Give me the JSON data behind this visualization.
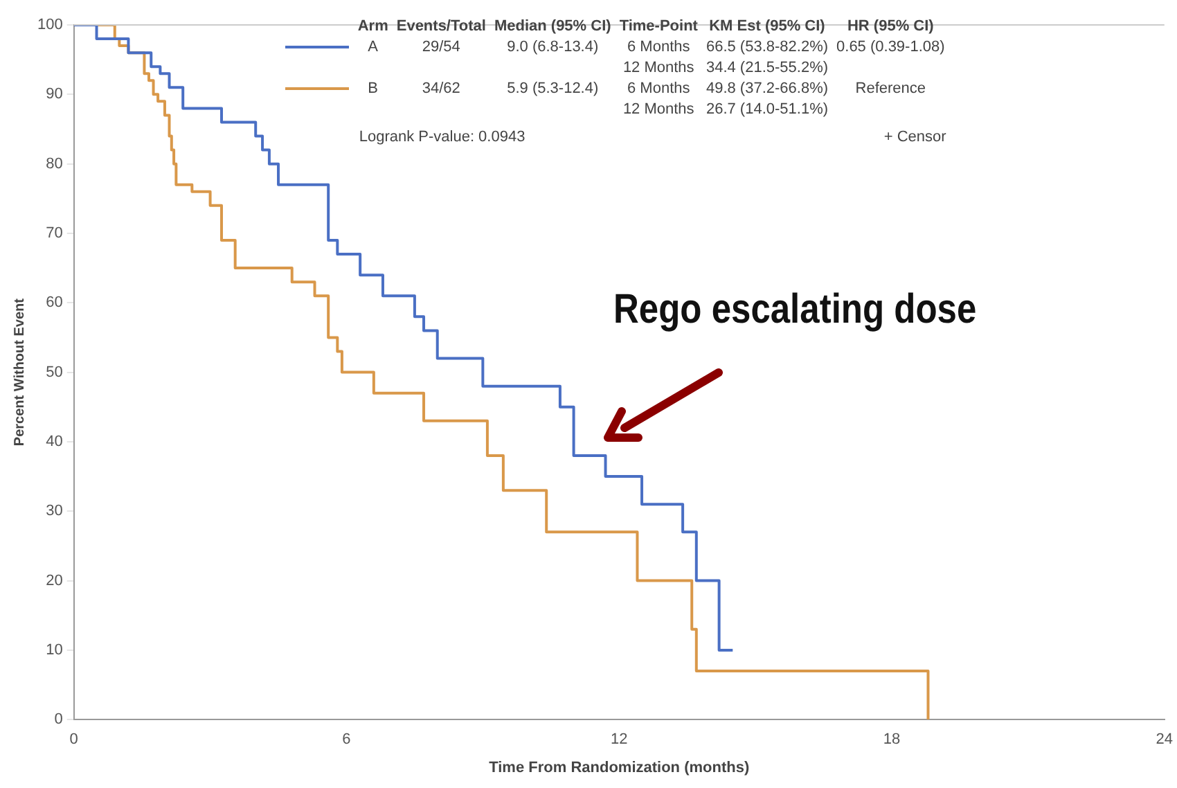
{
  "chart_data": {
    "type": "step",
    "xlabel": "Time From Randomization (months)",
    "ylabel": "Percent Without Event",
    "xlim": [
      0,
      24
    ],
    "xticks": [
      0,
      6,
      12,
      18,
      24
    ],
    "ylim": [
      0,
      100
    ],
    "yticks": [
      0,
      10,
      20,
      30,
      40,
      50,
      60,
      70,
      80,
      90,
      100
    ],
    "grid": false,
    "marker": "none",
    "legend": "top left",
    "series": [
      {
        "name": "A",
        "color": "#4a6fc4",
        "x": [
          0,
          0.5,
          1.2,
          1.7,
          1.9,
          2.1,
          2.4,
          3.25,
          4.0,
          4.15,
          4.3,
          4.5,
          5.6,
          5.8,
          6.3,
          6.8,
          7.5,
          7.7,
          8.0,
          9.0,
          10.7,
          11.0,
          11.7,
          12.5,
          13.4,
          13.7,
          14.2,
          14.5
        ],
        "values": [
          100,
          98,
          96,
          94,
          93,
          91,
          88,
          86,
          84,
          82,
          80,
          77,
          69,
          67,
          64,
          61,
          58,
          56,
          52,
          48,
          45,
          38,
          35,
          31,
          27,
          20,
          10,
          10
        ]
      },
      {
        "name": "B",
        "color": "#d9984a",
        "x": [
          0,
          0.9,
          1.0,
          1.2,
          1.55,
          1.65,
          1.75,
          1.85,
          2.0,
          2.1,
          2.15,
          2.2,
          2.25,
          2.6,
          3.0,
          3.25,
          3.55,
          4.8,
          5.3,
          5.6,
          5.8,
          5.9,
          6.6,
          7.7,
          9.1,
          9.45,
          10.4,
          12.4,
          13.6,
          13.7,
          18.8
        ],
        "values": [
          100,
          98,
          97,
          96,
          93,
          92,
          90,
          89,
          87,
          84,
          82,
          80,
          77,
          76,
          74,
          69,
          65,
          63,
          61,
          55,
          53,
          50,
          47,
          43,
          38,
          33,
          27,
          20,
          13,
          7,
          0
        ]
      }
    ],
    "annotations": [
      "Arm",
      "Events/Total",
      "Median (95% CI)",
      "Time-Point",
      "KM Est (95% CI)",
      "HR (95% CI)",
      "29/54",
      "9.0 (6.8-13.4)",
      "6 Months",
      "66.5 (53.8-82.2%)",
      "0.65 (0.39-1.08)",
      "12 Months",
      "34.4 (21.5-55.2%)",
      "34/62",
      "5.9 (5.3-12.4)",
      "6 Months",
      "49.8 (37.2-66.8%)",
      "Reference",
      "12 Months",
      "26.7 (14.0-51.1%)",
      "Logrank P-value: 0.0943",
      "+ Censor",
      "Rego escalating dose"
    ]
  }
}
